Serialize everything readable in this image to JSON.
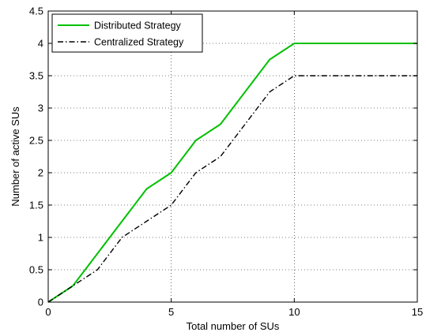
{
  "chart_data": {
    "type": "line",
    "title": "",
    "xlabel": "Total number of SUs",
    "ylabel": "Number of active SUs",
    "xlim": [
      0,
      15
    ],
    "ylim": [
      0,
      4.5
    ],
    "xticks": [
      0,
      5,
      10,
      15
    ],
    "xtick_labels": [
      "0",
      "5",
      "10",
      "15"
    ],
    "yticks": [
      0,
      0.5,
      1,
      1.5,
      2,
      2.5,
      3,
      3.5,
      4,
      4.5
    ],
    "ytick_labels": [
      "0",
      "0.5",
      "1",
      "1.5",
      "2",
      "2.5",
      "3",
      "3.5",
      "4",
      "4.5"
    ],
    "grid": true,
    "legend_position": "top-left",
    "series": [
      {
        "name": "Distributed Strategy",
        "color": "#00c000",
        "style": "solid",
        "x": [
          0,
          1,
          2,
          3,
          4,
          5,
          6,
          7,
          8,
          9,
          10,
          11,
          12,
          13,
          14,
          15
        ],
        "y": [
          0,
          0.25,
          0.75,
          1.25,
          1.75,
          2.0,
          2.5,
          2.75,
          3.25,
          3.75,
          4.0,
          4.0,
          4.0,
          4.0,
          4.0,
          4.0
        ]
      },
      {
        "name": "Centralized Strategy",
        "color": "#000000",
        "style": "dashdot",
        "x": [
          0,
          1,
          2,
          3,
          4,
          5,
          6,
          7,
          8,
          9,
          10,
          11,
          12,
          13,
          14,
          15
        ],
        "y": [
          0,
          0.25,
          0.5,
          1.0,
          1.25,
          1.5,
          2.0,
          2.25,
          2.75,
          3.25,
          3.5,
          3.5,
          3.5,
          3.5,
          3.5,
          3.5
        ]
      }
    ]
  }
}
